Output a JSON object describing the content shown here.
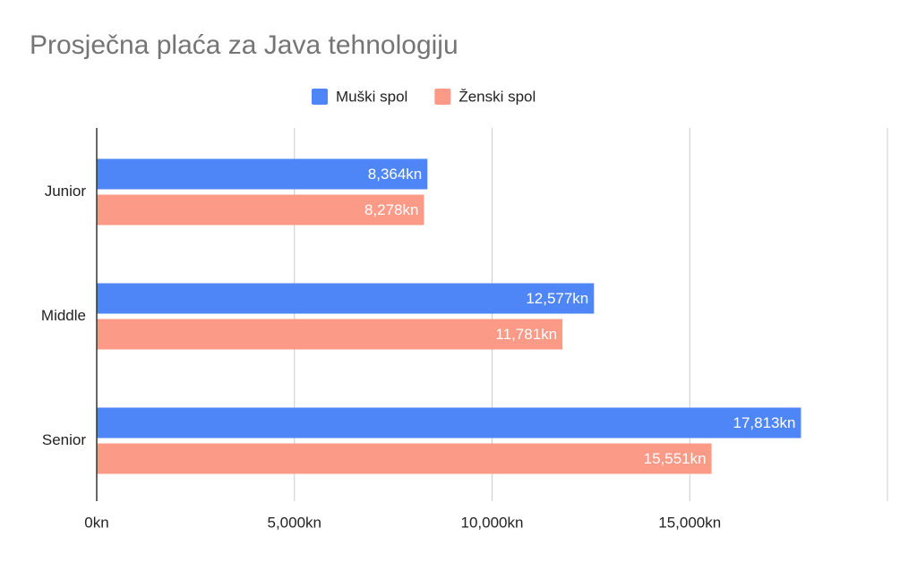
{
  "chart_data": {
    "type": "hbar",
    "title": "Prosječna plaća za Java tehnologiju",
    "categories": [
      "Junior",
      "Middle",
      "Senior"
    ],
    "series": [
      {
        "name": "Muški spol",
        "color": "#4f86f7",
        "values": [
          8364,
          12577,
          17813
        ],
        "value_labels": [
          "8,364kn",
          "12,577kn",
          "17,813kn"
        ]
      },
      {
        "name": "Ženski spol",
        "color": "#fb9a87",
        "values": [
          8278,
          11781,
          15551
        ],
        "value_labels": [
          "8,278kn",
          "11,781kn",
          "15,551kn"
        ]
      }
    ],
    "xlim": [
      0,
      20000
    ],
    "xticks": [
      {
        "value": 0,
        "label": "0kn"
      },
      {
        "value": 5000,
        "label": "5,000kn"
      },
      {
        "value": 10000,
        "label": "10,000kn"
      },
      {
        "value": 15000,
        "label": "15,000kn"
      }
    ],
    "grid": true,
    "legend": "top"
  }
}
